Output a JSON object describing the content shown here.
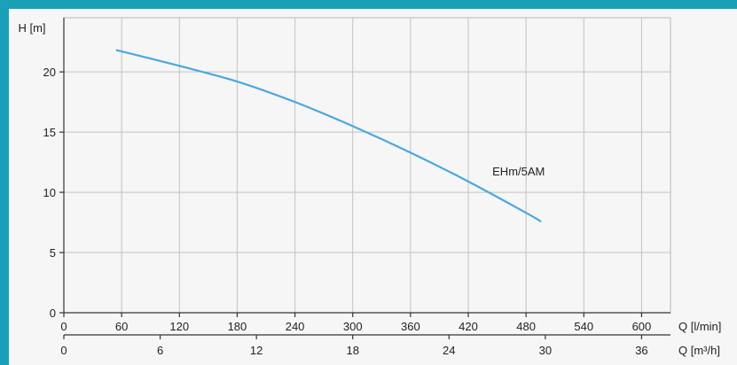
{
  "chart_data": {
    "type": "line",
    "ylabel": "H [m]",
    "xlabel_primary": "Q [l/min]",
    "xlabel_secondary": "Q [m³/h]",
    "ylim": [
      0,
      24.5
    ],
    "xlim": [
      0,
      630
    ],
    "y_ticks": [
      0,
      5,
      10,
      15,
      20
    ],
    "x_ticks_primary": [
      0,
      60,
      120,
      180,
      240,
      300,
      360,
      420,
      480,
      540,
      600
    ],
    "x_ticks_secondary": [
      0,
      6,
      12,
      18,
      24,
      30,
      36
    ],
    "grid": true,
    "series": [
      {
        "name": "EHm/5AM",
        "color": "#4aa8e0",
        "x": [
          55,
          120,
          180,
          240,
          300,
          360,
          420,
          480,
          495
        ],
        "y": [
          21.8,
          20.5,
          19.2,
          17.5,
          15.5,
          13.3,
          10.9,
          8.3,
          7.6
        ]
      }
    ]
  }
}
